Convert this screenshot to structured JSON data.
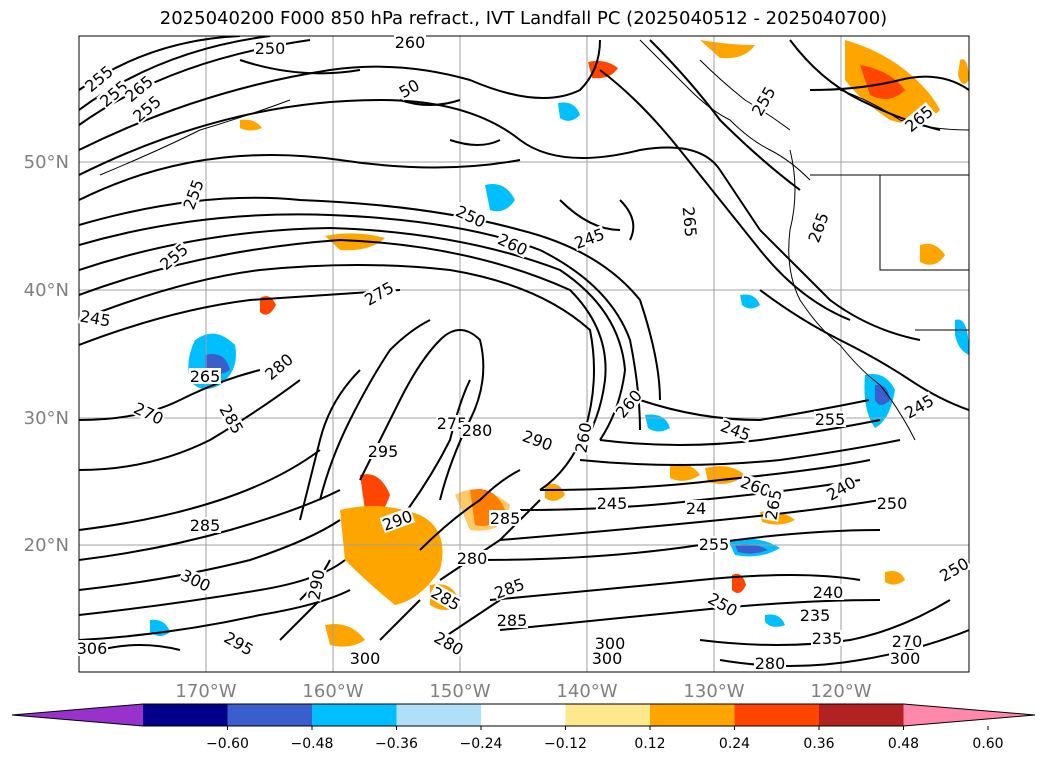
{
  "title": "2025040200 F000 850 hPa refract., IVT Landfall PC (2025040512 - 2025040700)",
  "map": {
    "lon_labels": [
      "170°W",
      "160°W",
      "150°W",
      "140°W",
      "130°W",
      "120°W"
    ],
    "lat_labels": [
      "50°N",
      "40°N",
      "30°N",
      "20°N"
    ],
    "contour_labels": [
      "255",
      "255",
      "265",
      "255",
      "250",
      "260",
      "50",
      "255",
      "255",
      "250",
      "260",
      "245",
      "265",
      "265",
      "255",
      "265",
      "275",
      "245",
      "260",
      "280",
      "265",
      "270",
      "285",
      "295",
      "290",
      "260",
      "245",
      "255",
      "245",
      "275",
      "280",
      "260",
      "240",
      "250",
      "285",
      "290",
      "285",
      "245",
      "24",
      "265",
      "255",
      "300",
      "300",
      "280",
      "290",
      "285",
      "285",
      "250",
      "240",
      "235",
      "235",
      "280",
      "300",
      "300",
      "295",
      "280",
      "285",
      "300",
      "306",
      "270",
      "250"
    ],
    "coastline_color": "#000000",
    "grid_color": "#a0a0a0"
  },
  "colorbar": {
    "tick_labels": [
      "−0.60",
      "−0.48",
      "−0.36",
      "−0.24",
      "−0.12",
      "0.12",
      "0.24",
      "0.36",
      "0.48",
      "0.60"
    ],
    "colors": [
      "#9932cc",
      "#00008b",
      "#3a5fcd",
      "#00bfff",
      "#b0e0f8",
      "#ffffff",
      "#ffe88c",
      "#ffa500",
      "#ff4500",
      "#b22222",
      "#ff88aa"
    ]
  }
}
